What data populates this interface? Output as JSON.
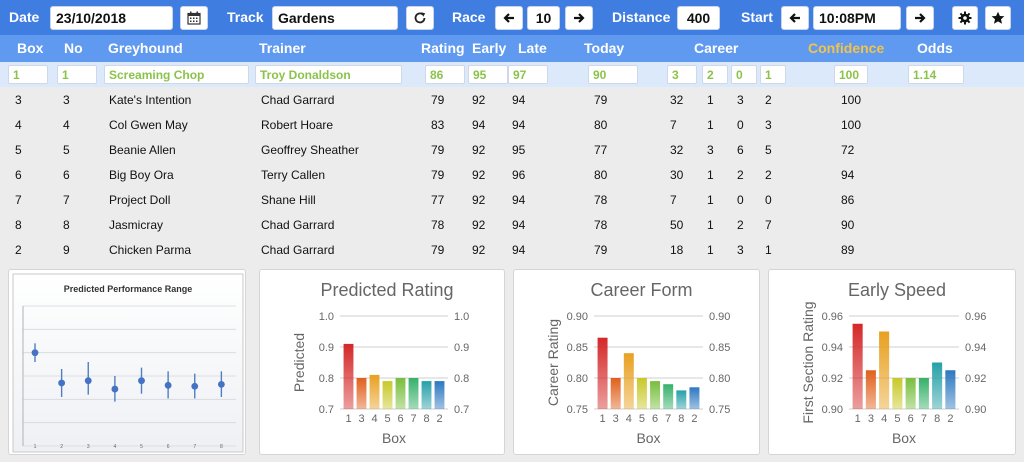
{
  "toolbar": {
    "date_label": "Date",
    "date_value": "23/10/2018",
    "calendar_icon": "calendar-icon",
    "track_label": "Track",
    "track_value": "Gardens",
    "refresh_icon": "refresh-icon",
    "race_label": "Race",
    "race_value": "10",
    "distance_label": "Distance",
    "distance_value": "400",
    "start_label": "Start",
    "start_value": "10:08PM",
    "settings_icon": "gear-icon",
    "favorite_icon": "star-icon"
  },
  "table": {
    "headers": {
      "box": "Box",
      "no": "No",
      "greyhound": "Greyhound",
      "trainer": "Trainer",
      "rating": "Rating",
      "early": "Early",
      "late": "Late",
      "today": "Today",
      "career": "Career",
      "confidence": "Confidence",
      "odds": "Odds"
    },
    "highlight": {
      "box": "1",
      "no": "1",
      "greyhound": "Screaming Chop",
      "trainer": "Troy Donaldson",
      "rating": "86",
      "early": "95",
      "late": "97",
      "today": "90",
      "c1": "3",
      "c2": "2",
      "c3": "0",
      "c4": "1",
      "confidence": "100",
      "odds": "1.14"
    },
    "rows": [
      {
        "box": "3",
        "no": "3",
        "greyhound": "Kate's Intention",
        "trainer": "Chad Garrard",
        "rating": "79",
        "early": "92",
        "late": "94",
        "today": "79",
        "c1": "32",
        "c2": "1",
        "c3": "3",
        "c4": "2",
        "confidence": "100"
      },
      {
        "box": "4",
        "no": "4",
        "greyhound": "Col Gwen May",
        "trainer": "Robert Hoare",
        "rating": "83",
        "early": "94",
        "late": "94",
        "today": "80",
        "c1": "7",
        "c2": "1",
        "c3": "0",
        "c4": "3",
        "confidence": "100"
      },
      {
        "box": "5",
        "no": "5",
        "greyhound": "Beanie Allen",
        "trainer": "Geoffrey Sheather",
        "rating": "79",
        "early": "92",
        "late": "95",
        "today": "77",
        "c1": "32",
        "c2": "3",
        "c3": "6",
        "c4": "5",
        "confidence": "72"
      },
      {
        "box": "6",
        "no": "6",
        "greyhound": "Big Boy Ora",
        "trainer": "Terry Callen",
        "rating": "79",
        "early": "92",
        "late": "96",
        "today": "80",
        "c1": "30",
        "c2": "1",
        "c3": "2",
        "c4": "2",
        "confidence": "94"
      },
      {
        "box": "7",
        "no": "7",
        "greyhound": "Project Doll",
        "trainer": "Shane Hill",
        "rating": "77",
        "early": "92",
        "late": "94",
        "today": "78",
        "c1": "7",
        "c2": "1",
        "c3": "0",
        "c4": "0",
        "confidence": "86"
      },
      {
        "box": "8",
        "no": "8",
        "greyhound": "Jasmicray",
        "trainer": "Chad Garrard",
        "rating": "78",
        "early": "92",
        "late": "94",
        "today": "78",
        "c1": "50",
        "c2": "1",
        "c3": "2",
        "c4": "7",
        "confidence": "90"
      },
      {
        "box": "2",
        "no": "9",
        "greyhound": "Chicken Parma",
        "trainer": "Chad Garrard",
        "rating": "79",
        "early": "92",
        "late": "94",
        "today": "79",
        "c1": "18",
        "c2": "1",
        "c3": "3",
        "c4": "1",
        "confidence": "89"
      }
    ]
  },
  "chart_data": [
    {
      "type": "scatter",
      "title": "Predicted Performance Range",
      "x": [
        1,
        2,
        3,
        4,
        5,
        6,
        7,
        8
      ],
      "y": [
        0.9,
        0.835,
        0.84,
        0.822,
        0.84,
        0.83,
        0.828,
        0.832
      ],
      "low": [
        0.88,
        0.805,
        0.81,
        0.795,
        0.812,
        0.802,
        0.802,
        0.805
      ],
      "high": [
        0.92,
        0.865,
        0.88,
        0.85,
        0.868,
        0.86,
        0.855,
        0.86
      ],
      "ylim": [
        0.7,
        1.0
      ],
      "grid": true,
      "tick_labels_x": [
        "1",
        "2",
        "3",
        "4",
        "5",
        "6",
        "7",
        "8"
      ]
    },
    {
      "type": "bar",
      "title": "Predicted Rating",
      "xlabel": "Box",
      "ylabel": "Predicted",
      "categories": [
        "1",
        "3",
        "4",
        "5",
        "6",
        "7",
        "8",
        "2"
      ],
      "values": [
        0.91,
        0.8,
        0.81,
        0.79,
        0.8,
        0.8,
        0.79,
        0.79
      ],
      "ylim": [
        0.7,
        1.0
      ],
      "ticks": [
        "0.7",
        "0.8",
        "0.9",
        "1.0"
      ],
      "grid": true
    },
    {
      "type": "bar",
      "title": "Career Form",
      "xlabel": "Box",
      "ylabel": "Career Rating",
      "categories": [
        "1",
        "3",
        "4",
        "5",
        "6",
        "7",
        "8",
        "2"
      ],
      "values": [
        0.865,
        0.8,
        0.84,
        0.8,
        0.795,
        0.79,
        0.78,
        0.785
      ],
      "ylim": [
        0.75,
        0.9
      ],
      "ticks": [
        "0.75",
        "0.80",
        "0.85",
        "0.90"
      ],
      "grid": true
    },
    {
      "type": "bar",
      "title": "Early Speed",
      "xlabel": "Box",
      "ylabel": "First Section Rating",
      "categories": [
        "1",
        "3",
        "4",
        "5",
        "6",
        "7",
        "8",
        "2"
      ],
      "values": [
        0.955,
        0.925,
        0.95,
        0.92,
        0.92,
        0.92,
        0.93,
        0.925
      ],
      "ylim": [
        0.9,
        0.96
      ],
      "ticks": [
        "0.90",
        "0.92",
        "0.94",
        "0.96"
      ],
      "grid": true
    }
  ]
}
